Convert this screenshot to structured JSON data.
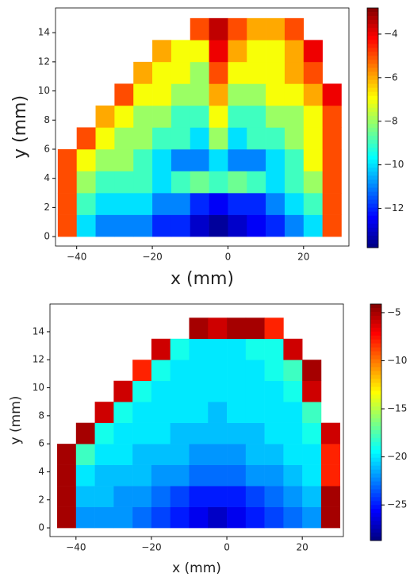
{
  "chart_data": [
    {
      "type": "heatmap",
      "colormap": "jet",
      "x_label": "x (mm)",
      "y_label": "y (mm)",
      "xlim": [
        -45.6,
        32
      ],
      "ylim": [
        -0.65,
        15.7
      ],
      "xticks": [
        {
          "value": -40,
          "label": "−40"
        },
        {
          "value": -20,
          "label": "−20"
        },
        0,
        20
      ],
      "yticks": [
        0,
        2,
        4,
        6,
        8,
        10,
        12,
        14
      ],
      "x_edges": [
        -45,
        -40,
        -35,
        -30,
        -25,
        -20,
        -15,
        -10,
        -5,
        0,
        5,
        10,
        15,
        20,
        25,
        30
      ],
      "y_edges": [
        0,
        1.5,
        3,
        4.5,
        6,
        7.5,
        9,
        10.5,
        12,
        13.5,
        15
      ],
      "z": [
        [
          -5,
          -10,
          -11,
          -11,
          -11,
          -12,
          -12,
          -13,
          -13.5,
          -13,
          -12.5,
          -12,
          -11,
          -10,
          -5
        ],
        [
          -5,
          -9,
          -10,
          -10,
          -10,
          -11,
          -11,
          -12,
          -12.5,
          -12,
          -12,
          -11,
          -10,
          -9,
          -5
        ],
        [
          -5,
          -8,
          -9,
          -9,
          -9,
          -10,
          -9,
          -8.5,
          -9,
          -8.5,
          -9,
          -10,
          -9,
          -8,
          -5
        ],
        [
          -5,
          -7,
          -8,
          -8,
          -9,
          -10,
          -11,
          -11,
          -10,
          -11,
          -11,
          -10,
          -9,
          -7,
          -5
        ],
        [
          null,
          -5,
          -7,
          -8,
          -8,
          -9,
          -9,
          -10,
          -8,
          -10,
          -9,
          -9,
          -8,
          -7,
          -5
        ],
        [
          null,
          null,
          -6,
          -7,
          -8,
          -8,
          -9,
          -9,
          -7,
          -9,
          -9,
          -8,
          -8,
          -7,
          -5
        ],
        [
          null,
          null,
          null,
          -5,
          -7,
          -7,
          -8,
          -8,
          -6,
          -8,
          -8,
          -7,
          -7,
          -6,
          -4
        ],
        [
          null,
          null,
          null,
          null,
          -6,
          -7,
          -7,
          -8,
          -5,
          -7,
          -7,
          -7,
          -6,
          -5,
          null
        ],
        [
          null,
          null,
          null,
          null,
          null,
          -6,
          -7,
          -7,
          -4,
          -6,
          -7,
          -7,
          -6,
          -4,
          null
        ],
        [
          null,
          null,
          null,
          null,
          null,
          null,
          null,
          -5,
          -3.5,
          -5,
          -6,
          -6,
          -5,
          null,
          null
        ]
      ],
      "zlim": [
        -13.8,
        -2.8
      ],
      "zticks": [
        {
          "value": -12,
          "label": "−12"
        },
        {
          "value": -10,
          "label": "−10"
        },
        {
          "value": -8,
          "label": "−8"
        },
        {
          "value": -6,
          "label": "−6"
        },
        {
          "value": -4,
          "label": "−4"
        }
      ]
    },
    {
      "type": "heatmap",
      "colormap": "jet",
      "x_label": "x (mm)",
      "y_label": "y (mm)",
      "xlim": [
        -46.9,
        30.9
      ],
      "ylim": [
        -0.62,
        15.98
      ],
      "xticks": [
        {
          "value": -40,
          "label": "−40"
        },
        {
          "value": -20,
          "label": "−20"
        },
        0,
        20
      ],
      "yticks": [
        0,
        2,
        4,
        6,
        8,
        10,
        12,
        14
      ],
      "x_edges": [
        -45,
        -40,
        -35,
        -30,
        -25,
        -20,
        -15,
        -10,
        -5,
        0,
        5,
        10,
        15,
        20,
        25,
        30
      ],
      "y_edges": [
        0,
        1.5,
        3,
        4.5,
        6,
        7.5,
        9,
        10.5,
        12,
        13.5,
        15
      ],
      "z": [
        [
          -5,
          -22,
          -22,
          -22,
          -23,
          -24,
          -25,
          -26,
          -27,
          -26,
          -25,
          -24,
          -23,
          -22,
          -5
        ],
        [
          -5,
          -21,
          -21,
          -22,
          -22,
          -23,
          -24,
          -25,
          -25,
          -25,
          -24,
          -23,
          -22,
          -21,
          -5
        ],
        [
          -5,
          -20,
          -21,
          -21,
          -21,
          -22,
          -22,
          -23,
          -23,
          -23,
          -22,
          -22,
          -21,
          -20,
          -8
        ],
        [
          -5,
          -18,
          -20,
          -20,
          -21,
          -21,
          -21,
          -22,
          -22,
          -22,
          -21,
          -21,
          -20,
          -20,
          -8
        ],
        [
          null,
          -5,
          -19,
          -20,
          -20,
          -20,
          -21,
          -21,
          -21,
          -21,
          -21,
          -20,
          -20,
          -19,
          -6
        ],
        [
          null,
          null,
          -6,
          -19,
          -20,
          -20,
          -20,
          -20,
          -21,
          -20,
          -20,
          -20,
          -20,
          -18,
          null
        ],
        [
          null,
          null,
          null,
          -6,
          -19,
          -20,
          -20,
          -20,
          -20,
          -20,
          -20,
          -20,
          -19,
          -6,
          null
        ],
        [
          null,
          null,
          null,
          null,
          -8,
          -19,
          -20,
          -20,
          -20,
          -20,
          -20,
          -19,
          -18,
          -5,
          null
        ],
        [
          null,
          null,
          null,
          null,
          null,
          -6,
          -19,
          -20,
          -20,
          -20,
          -19,
          -19,
          -6,
          null,
          null
        ],
        [
          null,
          null,
          null,
          null,
          null,
          null,
          null,
          -5,
          -6,
          -5,
          -5,
          -8,
          null,
          null,
          null
        ]
      ],
      "zlim": [
        -28.7,
        -4.1
      ],
      "zticks": [
        {
          "value": -25,
          "label": "−25"
        },
        {
          "value": -20,
          "label": "−20"
        },
        {
          "value": -15,
          "label": "−15"
        },
        {
          "value": -10,
          "label": "−10"
        },
        {
          "value": -5,
          "label": "−5"
        }
      ]
    }
  ]
}
